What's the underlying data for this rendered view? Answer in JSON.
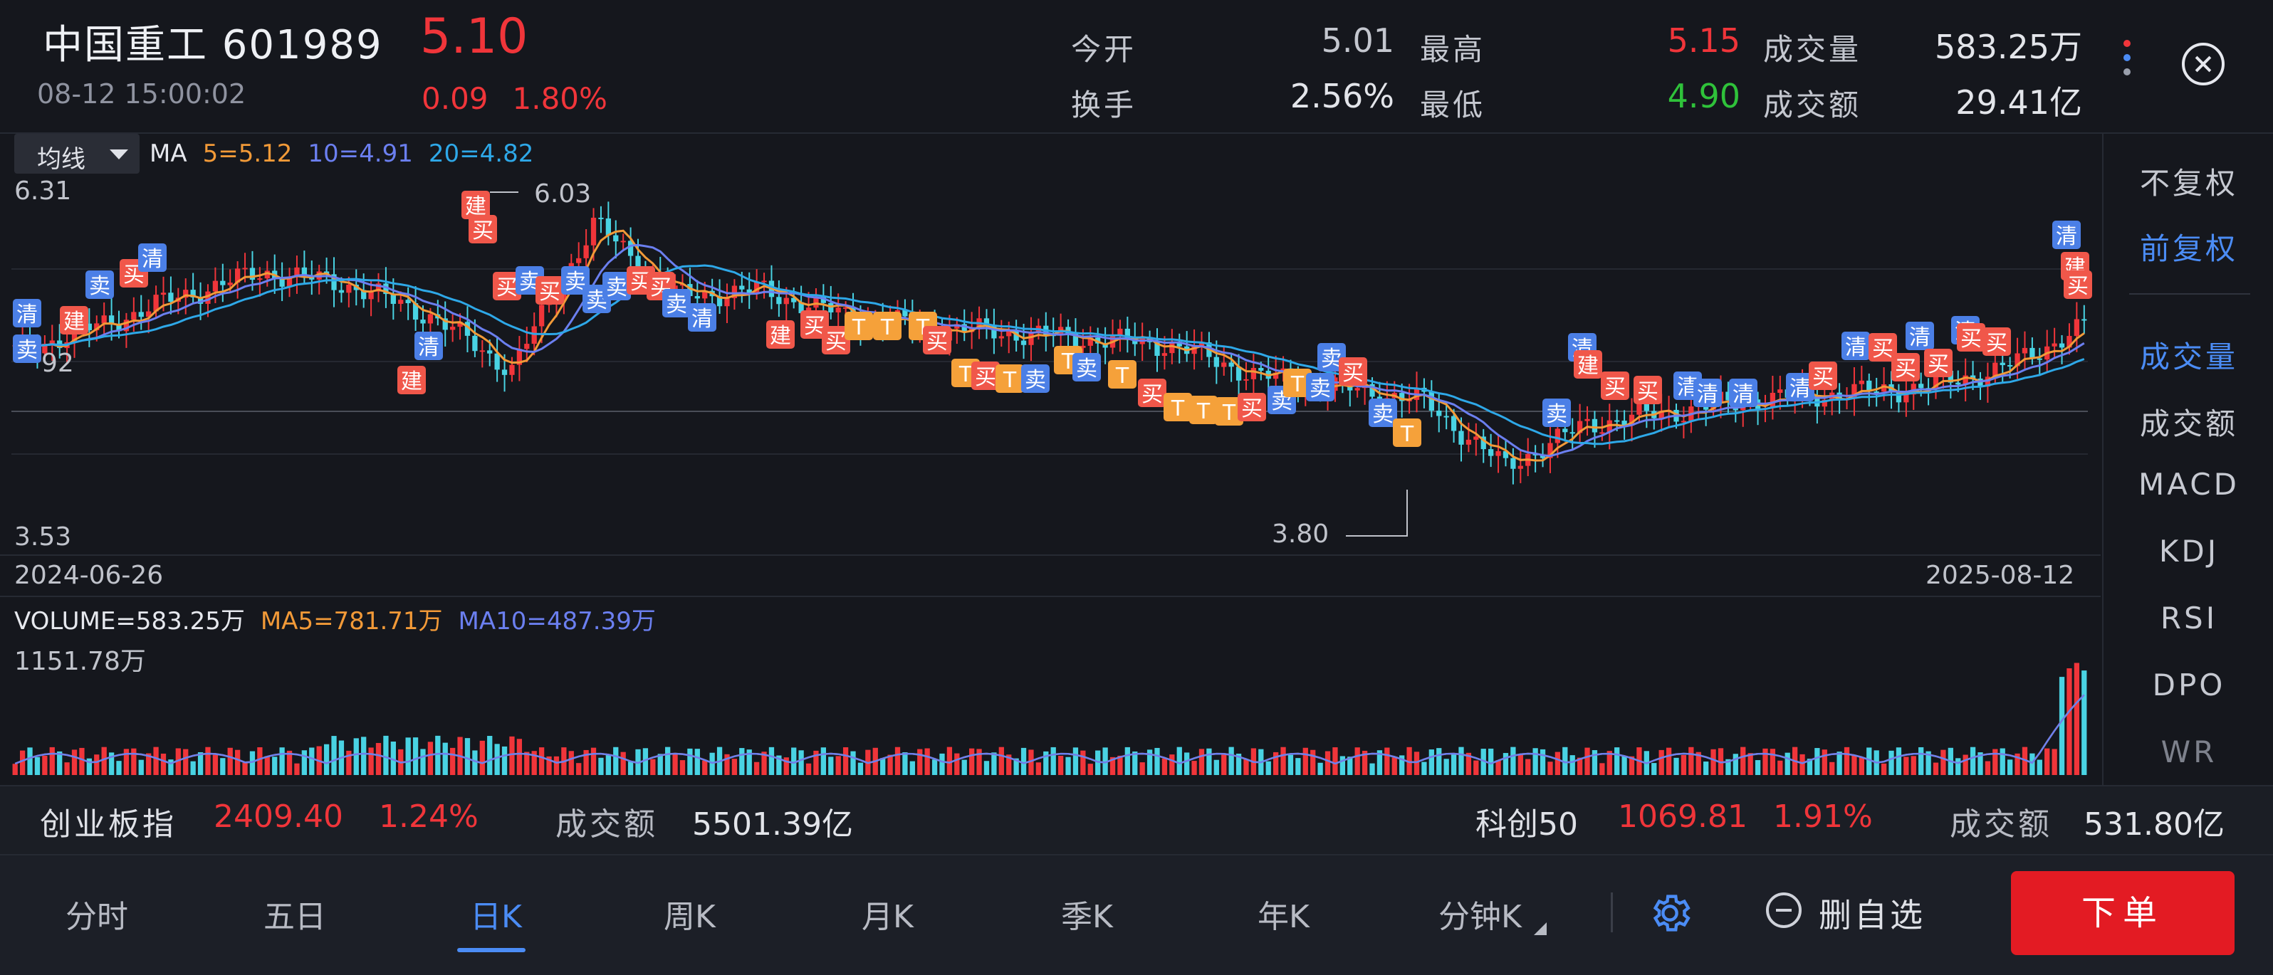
{
  "header": {
    "stock_name": "中国重工 601989",
    "price": "5.10",
    "datetime": "08-12 15:00:02",
    "change": "0.09",
    "change_pct": "1.80%",
    "quotes": {
      "open_label": "今开",
      "open_value": "5.01",
      "high_label": "最高",
      "high_value": "5.15",
      "volume_label": "成交量",
      "volume_value": "583.25万",
      "turnover_label": "换手",
      "turnover_value": "2.56%",
      "low_label": "最低",
      "low_value": "4.90",
      "amount_label": "成交额",
      "amount_value": "29.41亿"
    }
  },
  "chart": {
    "ma_select_label": "均线",
    "ma_label": "MA",
    "ma5": "5=5.12",
    "ma10": "10=4.91",
    "ma20": "20=4.82",
    "y_max": "6.31",
    "y_min": "3.53",
    "y_mid_partial": "92",
    "high_marker": "6.03",
    "low_marker": "3.80",
    "date_start": "2024-06-26",
    "date_end": "2025-08-12",
    "volume_label": "VOLUME=583.25万",
    "vol_ma5": "MA5=781.71万",
    "vol_ma10": "MA10=487.39万",
    "volume_max": "1151.78万",
    "signals": {
      "clear": "清",
      "sell": "卖",
      "build": "建",
      "buy": "买",
      "t": "T"
    },
    "colors": {
      "up": "#f0353a",
      "down": "#49d3e3",
      "ma5": "#f29a38",
      "ma10": "#6b7ff0",
      "ma20": "#2ea8e8",
      "buy": "#f0574a",
      "sell": "#4b7fe6",
      "t": "#f5a13a"
    }
  },
  "chart_data": {
    "type": "candlestick",
    "title": "",
    "x_range": [
      "2024-06-26",
      "2025-08-12"
    ],
    "ylim": [
      3.53,
      6.31
    ],
    "annotations": [
      {
        "label": "6.03",
        "kind": "high"
      },
      {
        "label": "3.80",
        "kind": "low"
      }
    ],
    "close_points": [
      {
        "x": "2024-06-26",
        "y": 4.9
      },
      {
        "x": "2024-07-10",
        "y": 5.1
      },
      {
        "x": "2024-07-25",
        "y": 5.35
      },
      {
        "x": "2024-08-10",
        "y": 5.55
      },
      {
        "x": "2024-08-28",
        "y": 5.45
      },
      {
        "x": "2024-09-12",
        "y": 5.2
      },
      {
        "x": "2024-09-24",
        "y": 4.75
      },
      {
        "x": "2024-10-08",
        "y": 5.95
      },
      {
        "x": "2024-10-22",
        "y": 5.35
      },
      {
        "x": "2024-11-08",
        "y": 5.4
      },
      {
        "x": "2024-11-25",
        "y": 5.2
      },
      {
        "x": "2024-12-10",
        "y": 5.1
      },
      {
        "x": "2024-12-27",
        "y": 5.05
      },
      {
        "x": "2025-01-15",
        "y": 5.0
      },
      {
        "x": "2025-02-05",
        "y": 4.95
      },
      {
        "x": "2025-02-20",
        "y": 4.7
      },
      {
        "x": "2025-03-10",
        "y": 4.6
      },
      {
        "x": "2025-03-28",
        "y": 4.5
      },
      {
        "x": "2025-04-08",
        "y": 3.95
      },
      {
        "x": "2025-04-25",
        "y": 4.3
      },
      {
        "x": "2025-05-15",
        "y": 4.4
      },
      {
        "x": "2025-06-05",
        "y": 4.5
      },
      {
        "x": "2025-06-25",
        "y": 4.55
      },
      {
        "x": "2025-07-10",
        "y": 4.6
      },
      {
        "x": "2025-07-25",
        "y": 4.75
      },
      {
        "x": "2025-08-12",
        "y": 5.1
      }
    ],
    "ma": [
      {
        "name": "MA5",
        "value": 5.12
      },
      {
        "name": "MA10",
        "value": 4.91
      },
      {
        "name": "MA20",
        "value": 4.82
      }
    ],
    "volume": {
      "max": "1151.78万",
      "last": "583.25万",
      "ma5": "781.71万",
      "ma10": "487.39万"
    }
  },
  "right_panel": {
    "items": [
      "不复权",
      "前复权",
      "成交量",
      "成交额",
      "MACD",
      "KDJ",
      "RSI",
      "DPO",
      "WR"
    ]
  },
  "index_bar": {
    "left_name": "创业板指",
    "left_value": "2409.40",
    "left_pct": "1.24%",
    "left_amount_label": "成交额",
    "left_amount": "5501.39亿",
    "right_name": "科创50",
    "right_value": "1069.81",
    "right_pct": "1.91%",
    "right_amount_label": "成交额",
    "right_amount": "531.80亿"
  },
  "tabs": [
    "分时",
    "五日",
    "日K",
    "周K",
    "月K",
    "季K",
    "年K",
    "分钟K"
  ],
  "actions": {
    "remove_fav": "删自选",
    "order": "下单"
  }
}
